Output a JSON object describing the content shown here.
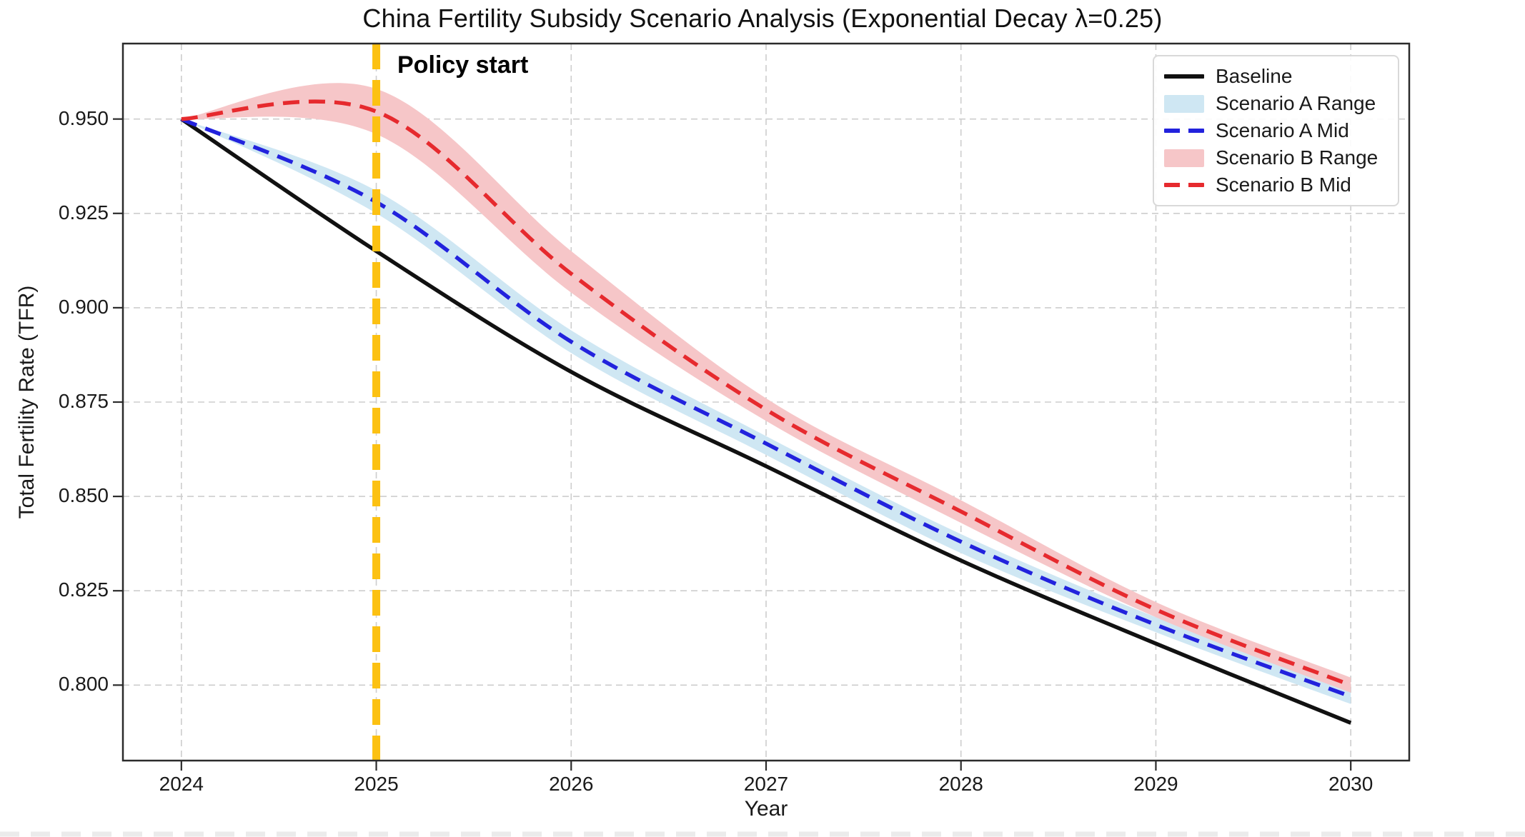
{
  "title": "China Fertility Subsidy Scenario Analysis (Exponential Decay λ=0.25)",
  "axes": {
    "xlabel": "Year",
    "ylabel": "Total Fertility Rate (TFR)",
    "x_tick_labels": [
      "2024",
      "2025",
      "2026",
      "2027",
      "2028",
      "2029",
      "2030"
    ],
    "y_tick_labels": [
      "0.950",
      "0.925",
      "0.900",
      "0.875",
      "0.850",
      "0.825",
      "0.800"
    ]
  },
  "annotation": {
    "policy_label": "Policy start"
  },
  "legend": {
    "position": "upper right",
    "items": [
      {
        "label": "Baseline",
        "swatch": "line-solid",
        "color": "#111111"
      },
      {
        "label": "Scenario A Range",
        "swatch": "patch",
        "color": "#cfe7f3"
      },
      {
        "label": "Scenario A Mid",
        "swatch": "line-dashed",
        "color": "#2222dd"
      },
      {
        "label": "Scenario B Range",
        "swatch": "patch",
        "color": "#f6c6c8"
      },
      {
        "label": "Scenario B Mid",
        "swatch": "line-dashed",
        "color": "#e62a2e"
      }
    ]
  },
  "colors": {
    "baseline": "#111111",
    "scenario_a": "#2222dd",
    "scenario_a_band": "#cfe7f3",
    "scenario_b": "#e62a2e",
    "scenario_b_band": "#f6c6c8",
    "policy_line": "#fcc112",
    "grid": "#cdcdcd",
    "frame": "#2b2b2b",
    "text": "#1a1a1a"
  },
  "chart_data": {
    "type": "line",
    "title": "China Fertility Subsidy Scenario Analysis (Exponential Decay λ=0.25)",
    "xlabel": "Year",
    "ylabel": "Total Fertility Rate (TFR)",
    "x": [
      2024,
      2025,
      2026,
      2027,
      2028,
      2029,
      2030
    ],
    "x_ticks": [
      2024,
      2025,
      2026,
      2027,
      2028,
      2029,
      2030
    ],
    "y_ticks": [
      0.95,
      0.925,
      0.9,
      0.875,
      0.85,
      0.825,
      0.8
    ],
    "xlim": [
      2023.7,
      2030.3
    ],
    "ylim": [
      0.78,
      0.97
    ],
    "grid": true,
    "legend_position": "upper right",
    "series": [
      {
        "name": "Baseline",
        "kind": "line",
        "style": "solid",
        "color": "#111111",
        "values": [
          0.95,
          0.915,
          0.883,
          0.858,
          0.833,
          0.811,
          0.79
        ]
      },
      {
        "name": "Scenario A Range",
        "kind": "band",
        "color": "#cfe7f3",
        "upper": [
          0.95,
          0.931,
          0.894,
          0.866,
          0.84,
          0.818,
          0.799
        ],
        "lower": [
          0.95,
          0.925,
          0.888,
          0.861,
          0.835,
          0.814,
          0.795
        ]
      },
      {
        "name": "Scenario A Mid",
        "kind": "line",
        "style": "dashed",
        "color": "#2222dd",
        "values": [
          0.95,
          0.928,
          0.891,
          0.864,
          0.838,
          0.816,
          0.797
        ]
      },
      {
        "name": "Scenario B Range",
        "kind": "band",
        "color": "#f6c6c8",
        "upper": [
          0.95,
          0.958,
          0.915,
          0.876,
          0.849,
          0.822,
          0.802
        ],
        "lower": [
          0.95,
          0.946,
          0.904,
          0.87,
          0.843,
          0.818,
          0.798
        ]
      },
      {
        "name": "Scenario B Mid",
        "kind": "line",
        "style": "dashed",
        "color": "#e62a2e",
        "values": [
          0.95,
          0.952,
          0.909,
          0.873,
          0.846,
          0.82,
          0.8
        ]
      }
    ],
    "vline": {
      "x": 2025,
      "label": "Policy start",
      "color": "#fcc112",
      "style": "dashed"
    }
  }
}
